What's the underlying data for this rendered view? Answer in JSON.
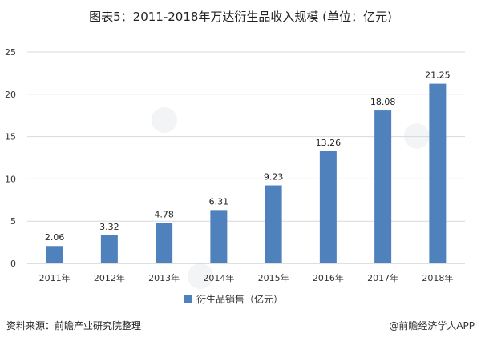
{
  "chart_data": {
    "type": "bar",
    "title": "图表5：2011-2018年万达衍生品收入规模 (单位：亿元)",
    "categories": [
      "2011年",
      "2012年",
      "2013年",
      "2014年",
      "2015年",
      "2016年",
      "2017年",
      "2018年"
    ],
    "series": [
      {
        "name": "衍生品销售（亿元）",
        "values": [
          2.06,
          3.32,
          4.78,
          6.31,
          9.23,
          13.26,
          18.08,
          21.25
        ]
      }
    ],
    "data_labels": [
      "2.06",
      "3.32",
      "4.78",
      "6.31",
      "9.23",
      "13.26",
      "18.08",
      "21.25"
    ],
    "yticks": [
      "0",
      "5",
      "10",
      "15",
      "20",
      "25"
    ],
    "ylim": [
      0,
      25
    ],
    "grid": true,
    "legend_position": "bottom",
    "bar_color": "#4f81bd"
  },
  "footer": {
    "source": "资料来源：前瞻产业研究院整理",
    "brand": "@前瞻经济学人APP"
  }
}
